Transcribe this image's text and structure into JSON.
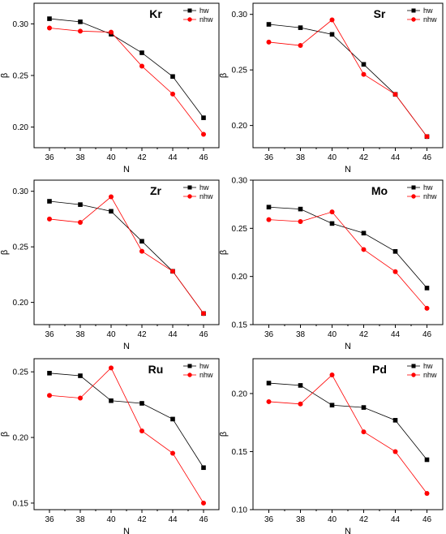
{
  "chart_data": [
    {
      "type": "line",
      "title": "Kr",
      "xlabel": "N",
      "ylabel": "β",
      "x": [
        36,
        38,
        40,
        42,
        44,
        46
      ],
      "ylim": [
        0.18,
        0.32
      ],
      "yticks": [
        0.2,
        0.25,
        0.3
      ],
      "ytick_labels": [
        "0.20",
        "0.25",
        "0.30"
      ],
      "series": [
        {
          "name": "hw",
          "color": "#000000",
          "marker": "square",
          "values": [
            0.305,
            0.302,
            0.29,
            0.272,
            0.249,
            0.209
          ]
        },
        {
          "name": "nhw",
          "color": "#ff0000",
          "marker": "circle",
          "values": [
            0.296,
            0.293,
            0.292,
            0.259,
            0.232,
            0.193
          ]
        }
      ]
    },
    {
      "type": "line",
      "title": "Sr",
      "xlabel": "N",
      "ylabel": "β",
      "x": [
        36,
        38,
        40,
        42,
        44,
        46
      ],
      "ylim": [
        0.18,
        0.31
      ],
      "yticks": [
        0.2,
        0.25,
        0.3
      ],
      "ytick_labels": [
        "0.20",
        "0.25",
        "0.30"
      ],
      "series": [
        {
          "name": "hw",
          "color": "#000000",
          "marker": "square",
          "values": [
            0.291,
            0.288,
            0.282,
            0.255,
            0.228,
            0.19
          ]
        },
        {
          "name": "nhw",
          "color": "#ff0000",
          "marker": "circle",
          "values": [
            0.275,
            0.272,
            0.295,
            0.246,
            0.228,
            0.19
          ]
        }
      ]
    },
    {
      "type": "line",
      "title": "Zr",
      "xlabel": "N",
      "ylabel": "β",
      "x": [
        36,
        38,
        40,
        42,
        44,
        46
      ],
      "ylim": [
        0.18,
        0.31
      ],
      "yticks": [
        0.2,
        0.25,
        0.3
      ],
      "ytick_labels": [
        "0.20",
        "0.25",
        "0.30"
      ],
      "series": [
        {
          "name": "hw",
          "color": "#000000",
          "marker": "square",
          "values": [
            0.291,
            0.288,
            0.282,
            0.255,
            0.228,
            0.19
          ]
        },
        {
          "name": "nhw",
          "color": "#ff0000",
          "marker": "circle",
          "values": [
            0.275,
            0.272,
            0.295,
            0.246,
            0.228,
            0.19
          ]
        }
      ]
    },
    {
      "type": "line",
      "title": "Mo",
      "xlabel": "N",
      "ylabel": "β",
      "x": [
        36,
        38,
        40,
        42,
        44,
        46
      ],
      "ylim": [
        0.15,
        0.3
      ],
      "yticks": [
        0.15,
        0.2,
        0.25,
        0.3
      ],
      "ytick_labels": [
        "0.15",
        "0.20",
        "0.25",
        "0.30"
      ],
      "series": [
        {
          "name": "hw",
          "color": "#000000",
          "marker": "square",
          "values": [
            0.272,
            0.27,
            0.255,
            0.245,
            0.226,
            0.188
          ]
        },
        {
          "name": "nhw",
          "color": "#ff0000",
          "marker": "circle",
          "values": [
            0.259,
            0.257,
            0.267,
            0.228,
            0.205,
            0.167
          ]
        }
      ]
    },
    {
      "type": "line",
      "title": "Ru",
      "xlabel": "N",
      "ylabel": "β",
      "x": [
        36,
        38,
        40,
        42,
        44,
        46
      ],
      "ylim": [
        0.145,
        0.26
      ],
      "yticks": [
        0.15,
        0.2,
        0.25
      ],
      "ytick_labels": [
        "0.15",
        "0.20",
        "0.25"
      ],
      "series": [
        {
          "name": "hw",
          "color": "#000000",
          "marker": "square",
          "values": [
            0.249,
            0.247,
            0.228,
            0.226,
            0.214,
            0.177
          ]
        },
        {
          "name": "nhw",
          "color": "#ff0000",
          "marker": "circle",
          "values": [
            0.232,
            0.23,
            0.253,
            0.205,
            0.188,
            0.15
          ]
        }
      ]
    },
    {
      "type": "line",
      "title": "Pd",
      "xlabel": "N",
      "ylabel": "β",
      "x": [
        36,
        38,
        40,
        42,
        44,
        46
      ],
      "ylim": [
        0.1,
        0.23
      ],
      "yticks": [
        0.1,
        0.15,
        0.2
      ],
      "ytick_labels": [
        "0.10",
        "0.15",
        "0.20"
      ],
      "series": [
        {
          "name": "hw",
          "color": "#000000",
          "marker": "square",
          "values": [
            0.209,
            0.207,
            0.19,
            0.188,
            0.177,
            0.143
          ]
        },
        {
          "name": "nhw",
          "color": "#ff0000",
          "marker": "circle",
          "values": [
            0.193,
            0.191,
            0.216,
            0.167,
            0.15,
            0.114
          ]
        }
      ]
    }
  ]
}
